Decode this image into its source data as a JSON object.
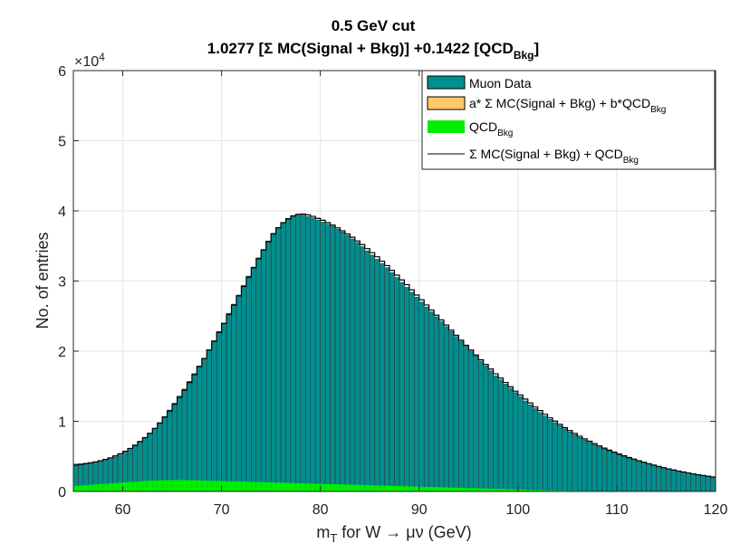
{
  "chart_data": {
    "type": "bar",
    "title_line1": "0.5 GeV cut",
    "title_line2_a": "1.0277 [Σ MC(Signal + Bkg)] +0.1422 [QCD",
    "title_line2_sub": "Bkg",
    "title_line2_b": "]",
    "xlabel_pre": "m",
    "xlabel_sub": "T",
    "xlabel_post": " for W → μν (GeV)",
    "ylabel": "No. of entries",
    "y_exponent_label": "×10",
    "y_exponent": "4",
    "xlim": [
      55,
      120
    ],
    "ylim": [
      0,
      60000
    ],
    "x_ticks": [
      "60",
      "70",
      "80",
      "90",
      "100",
      "110",
      "120"
    ],
    "y_ticks": [
      "0",
      "1",
      "2",
      "3",
      "4",
      "5",
      "6"
    ],
    "grid": true,
    "legend_position": "top-right",
    "bin_width": 0.5,
    "bin_start": 55,
    "series": [
      {
        "key": "data",
        "legend": "Muon Data",
        "color": "#008f8f",
        "values": [
          3900,
          3950,
          4020,
          4100,
          4200,
          4330,
          4500,
          4700,
          4900,
          5200,
          5600,
          6000,
          6500,
          7050,
          7650,
          8300,
          9000,
          9800,
          10700,
          11600,
          12600,
          13600,
          14600,
          15700,
          16800,
          17900,
          19000,
          20200,
          21500,
          22800,
          24000,
          25400,
          26700,
          28000,
          29400,
          30700,
          32000,
          33300,
          34500,
          35700,
          36800,
          37600,
          38300,
          38800,
          39200,
          39400,
          39400,
          39200,
          39000,
          38700,
          38400,
          38100,
          37800,
          37400,
          37000,
          36500,
          36000,
          35500,
          34900,
          34300,
          33700,
          33100,
          32500,
          31900,
          31200,
          30500,
          29800,
          29100,
          28400,
          27700,
          27000,
          26300,
          25600,
          24900,
          24200,
          23500,
          22800,
          22100,
          21400,
          20700,
          20000,
          19300,
          18600,
          17900,
          17200,
          16500,
          15900,
          15300,
          14700,
          14100,
          13500,
          12900,
          12350,
          11800,
          11250,
          10750,
          10250,
          9800,
          9350,
          8900,
          8480,
          8080,
          7700,
          7340,
          7000,
          6670,
          6350,
          6050,
          5770,
          5500,
          5240,
          5000,
          4760,
          4540,
          4320,
          4110,
          3920,
          3730,
          3550,
          3380,
          3210,
          3060,
          2910,
          2770,
          2640,
          2510,
          2390,
          2280,
          2170,
          2060
        ]
      },
      {
        "key": "fit",
        "legend_pre": "a* Σ MC(Signal + Bkg) + b*QCD",
        "legend_sub": "Bkg",
        "color": "#ffc966",
        "values": [
          3400,
          3500,
          3600,
          3720,
          3850,
          4000,
          4180,
          4400,
          4650,
          4950,
          5300,
          5700,
          6150,
          6650,
          7200,
          7800,
          8450,
          9200,
          10000,
          10850,
          11750,
          12700,
          13700,
          14750,
          15850,
          16950,
          18050,
          19250,
          20450,
          21700,
          22950,
          24200,
          25500,
          26800,
          28100,
          29400,
          30700,
          31950,
          33150,
          34300,
          35350,
          36200,
          36900,
          37450,
          37850,
          38050,
          38100,
          38000,
          37800,
          37550,
          37300,
          37000,
          36700,
          36350,
          35950,
          35500,
          35050,
          34550,
          34050,
          33500,
          32950,
          32400,
          31800,
          31200,
          30550,
          29900,
          29250,
          28600,
          27900,
          27200,
          26550,
          25850,
          25150,
          24450,
          23800,
          23100,
          22400,
          21700,
          21000,
          20300,
          19650,
          18950,
          18300,
          17650,
          17000,
          16350,
          15750,
          15150,
          14550,
          13950,
          13400,
          12850,
          12300,
          11750,
          11250,
          10750,
          10250,
          9800,
          9350,
          8900,
          8480,
          8080,
          7700,
          7340,
          7000,
          6670,
          6350,
          6050,
          5770,
          5500,
          5240,
          5000,
          4760,
          4540,
          4320,
          4110,
          3920,
          3730,
          3550,
          3380,
          3210,
          3060,
          2910,
          2770,
          2640,
          2510,
          2390,
          2280,
          2170,
          2060
        ]
      },
      {
        "key": "qcd",
        "legend_pre": "QCD",
        "legend_sub": "Bkg",
        "color": "#00ee00",
        "values": [
          800,
          850,
          900,
          950,
          1000,
          1050,
          1100,
          1150,
          1200,
          1250,
          1300,
          1350,
          1400,
          1450,
          1500,
          1530,
          1560,
          1590,
          1610,
          1620,
          1630,
          1630,
          1620,
          1610,
          1600,
          1580,
          1560,
          1540,
          1520,
          1500,
          1480,
          1460,
          1440,
          1420,
          1400,
          1380,
          1360,
          1340,
          1320,
          1300,
          1280,
          1260,
          1240,
          1220,
          1200,
          1180,
          1160,
          1140,
          1120,
          1100,
          1080,
          1060,
          1040,
          1020,
          1000,
          980,
          960,
          940,
          920,
          900,
          880,
          860,
          840,
          820,
          800,
          780,
          760,
          740,
          720,
          700,
          680,
          660,
          640,
          620,
          600,
          580,
          560,
          540,
          520,
          500,
          480,
          460,
          440,
          420,
          400,
          380,
          360,
          340,
          320,
          300,
          280,
          260,
          240,
          220,
          200,
          180,
          160,
          150,
          140,
          130,
          120,
          110,
          100,
          90,
          80,
          70,
          60,
          50,
          40,
          30,
          20,
          10,
          0,
          0,
          0,
          0,
          0,
          0,
          0,
          0,
          0,
          0,
          0,
          0,
          0,
          0,
          0,
          0,
          0,
          0
        ]
      },
      {
        "key": "sum",
        "legend_pre": "Σ MC(Signal + Bkg) + QCD",
        "legend_sub": "Bkg",
        "color": "#000000",
        "values": [
          3750,
          3850,
          3950,
          4080,
          4220,
          4380,
          4570,
          4800,
          5060,
          5370,
          5730,
          6140,
          6600,
          7110,
          7680,
          8300,
          8980,
          9750,
          10580,
          11470,
          12410,
          13400,
          14440,
          15530,
          16660,
          17800,
          18950,
          20180,
          21410,
          22680,
          23950,
          25230,
          26560,
          27890,
          29220,
          30550,
          31880,
          33180,
          34440,
          35630,
          36730,
          37600,
          38320,
          38890,
          39300,
          39510,
          39550,
          39440,
          39220,
          38940,
          38660,
          38320,
          37970,
          37590,
          37170,
          36710,
          36240,
          35720,
          35190,
          34620,
          34040,
          33460,
          32830,
          32200,
          31520,
          30840,
          30160,
          29480,
          28740,
          28000,
          27320,
          26590,
          25860,
          25130,
          24450,
          23730,
          23000,
          22280,
          21560,
          20840,
          20170,
          19450,
          18780,
          18110,
          17450,
          16780,
          16160,
          15540,
          14920,
          14300,
          13740,
          13180,
          12610,
          12040,
          11530,
          11010,
          10490,
          10030,
          9560,
          9100,
          8680,
          8270,
          7880,
          7510,
          7160,
          6820,
          6490,
          6180,
          5890,
          5610,
          5340,
          5090,
          4840,
          4610,
          4380,
          4160,
          3960,
          3760,
          3570,
          3390,
          3210,
          3060,
          2910,
          2770,
          2640,
          2510,
          2390,
          2280,
          2170,
          2060
        ]
      }
    ]
  }
}
